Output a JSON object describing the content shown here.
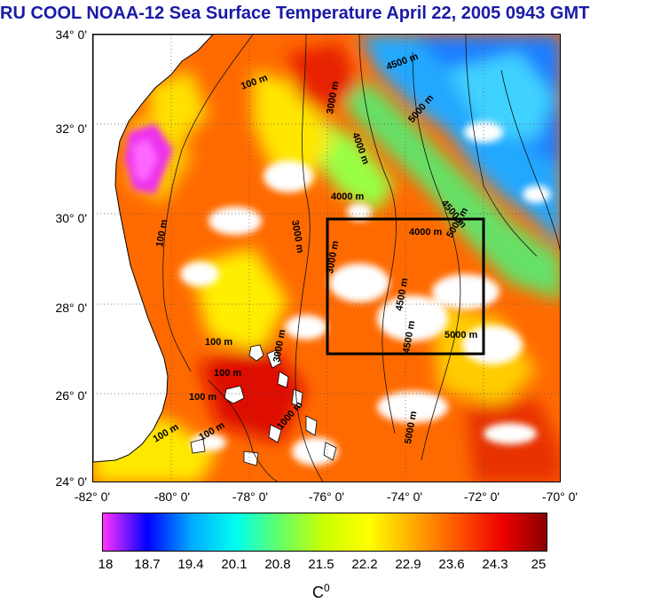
{
  "title": "RU COOL  NOAA-12 Sea Surface Temperature April 22, 2005 0943 GMT",
  "map": {
    "lat_labels": [
      "34° 0'",
      "32° 0'",
      "30° 0'",
      "28° 0'",
      "26° 0'",
      "24° 0'"
    ],
    "lon_labels": [
      "-82° 0'",
      "-80° 0'",
      "-78° 0'",
      "-76° 0'",
      "-74° 0'",
      "-72° 0'",
      "-70° 0'"
    ],
    "contours": {
      "c_100a": "100 m",
      "c_100b": "100 m",
      "c_100c": "100 m",
      "c_100d": "100 m",
      "c_100e": "100 m",
      "c_100f": "100 m",
      "c_100g": "100 m",
      "c_3000a": "3000 m",
      "c_3000b": "3000 m",
      "c_3000c": "3000 m",
      "c_3000d": "3000 m",
      "c_4000a": "4000 m",
      "c_4000b": "4000 m",
      "c_4000c": "4000 m",
      "c_4500a": "4500 m",
      "c_4500b": "4500 m",
      "c_4500c": "4500 m",
      "c_4500d": "4500 m",
      "c_5000a": "5000 m",
      "c_5000b": "5000 m",
      "c_5000c": "5000 m",
      "c_5000d": "5000 m",
      "c_1000": "1000 m"
    },
    "study_box": {
      "lon_min": -76,
      "lon_max": -72,
      "lat_min": 27,
      "lat_max": 30
    }
  },
  "colorbar": {
    "ticks": [
      "18",
      "18.7",
      "19.4",
      "20.1",
      "20.8",
      "21.5",
      "22.2",
      "22.9",
      "23.6",
      "24.3",
      "25"
    ],
    "unit_base": "C",
    "unit_sup": "0",
    "colors": [
      "#ff33ff",
      "#0000ff",
      "#00aaff",
      "#00ffee",
      "#66ff66",
      "#ccff00",
      "#ffff00",
      "#ffaa00",
      "#ff5500",
      "#ee0000",
      "#880000"
    ]
  }
}
